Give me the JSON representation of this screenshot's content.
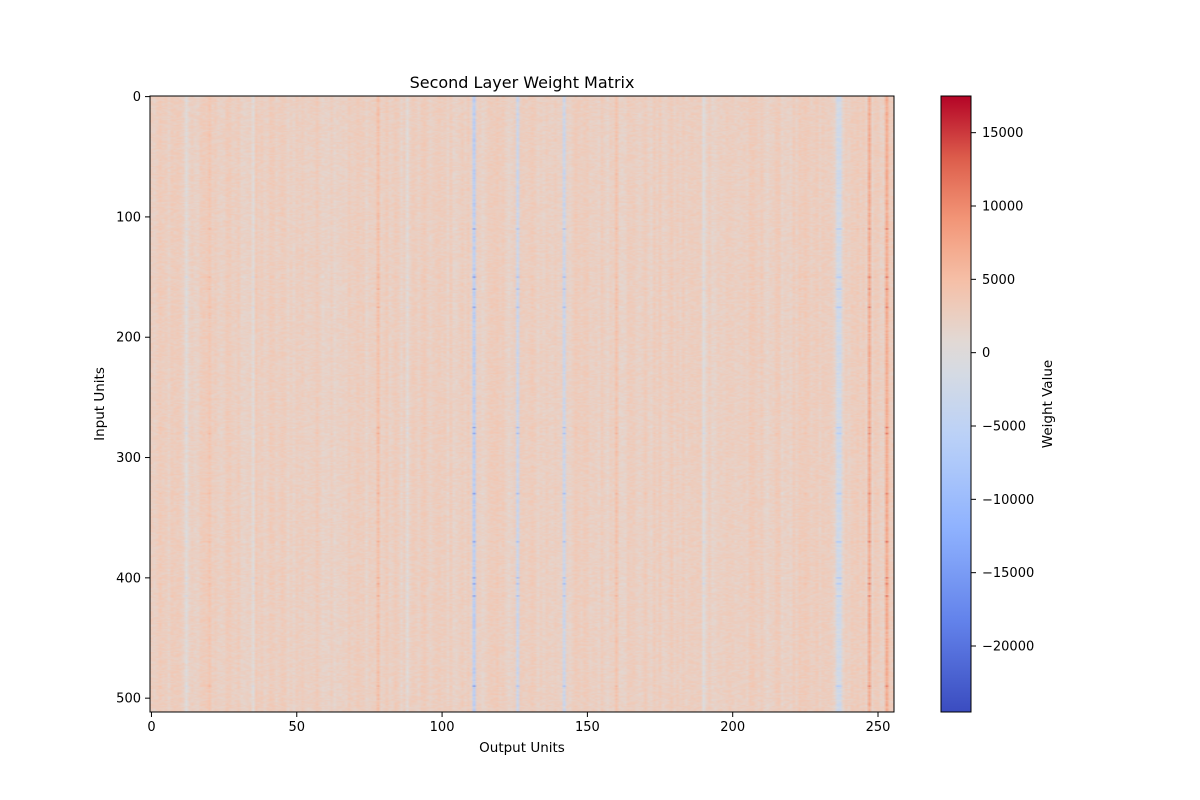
{
  "chart_data": {
    "type": "heatmap",
    "title": "Second Layer Weight Matrix",
    "xlabel": "Output Units",
    "ylabel": "Input Units",
    "colorbar_label": "Weight Value",
    "colormap": "coolwarm",
    "n_rows": 512,
    "n_cols": 256,
    "x_range": [
      0,
      256
    ],
    "y_range": [
      0,
      512
    ],
    "y_inverted": true,
    "x_ticks": [
      0,
      50,
      100,
      150,
      200,
      250
    ],
    "y_ticks": [
      0,
      100,
      200,
      300,
      400,
      500
    ],
    "color_range": [
      -24500,
      17500
    ],
    "colorbar_ticks": [
      15000,
      10000,
      5000,
      0,
      -5000,
      -10000,
      -15000,
      -20000
    ],
    "colorbar_tick_labels": [
      "15000",
      "10000",
      "5000",
      "0",
      "−5000",
      "−10000",
      "−15000",
      "−20000"
    ],
    "typical_value": 2500,
    "column_bias": [
      {
        "col": 111,
        "bias": -9000
      },
      {
        "col": 126,
        "bias": -6000
      },
      {
        "col": 142,
        "bias": -5500
      },
      {
        "col": 236,
        "bias": -5000
      },
      {
        "col": 237,
        "bias": -5000
      },
      {
        "col": 12,
        "bias": -2500
      },
      {
        "col": 35,
        "bias": -2000
      },
      {
        "col": 88,
        "bias": -2000
      },
      {
        "col": 190,
        "bias": -2000
      },
      {
        "col": 247,
        "bias": 5000
      },
      {
        "col": 253,
        "bias": 4000
      },
      {
        "col": 160,
        "bias": 2500
      },
      {
        "col": 78,
        "bias": 2000
      },
      {
        "col": 20,
        "bias": 2000
      }
    ],
    "row_emphasis": [
      110,
      150,
      160,
      175,
      275,
      280,
      330,
      370,
      400,
      405,
      415,
      490
    ]
  }
}
